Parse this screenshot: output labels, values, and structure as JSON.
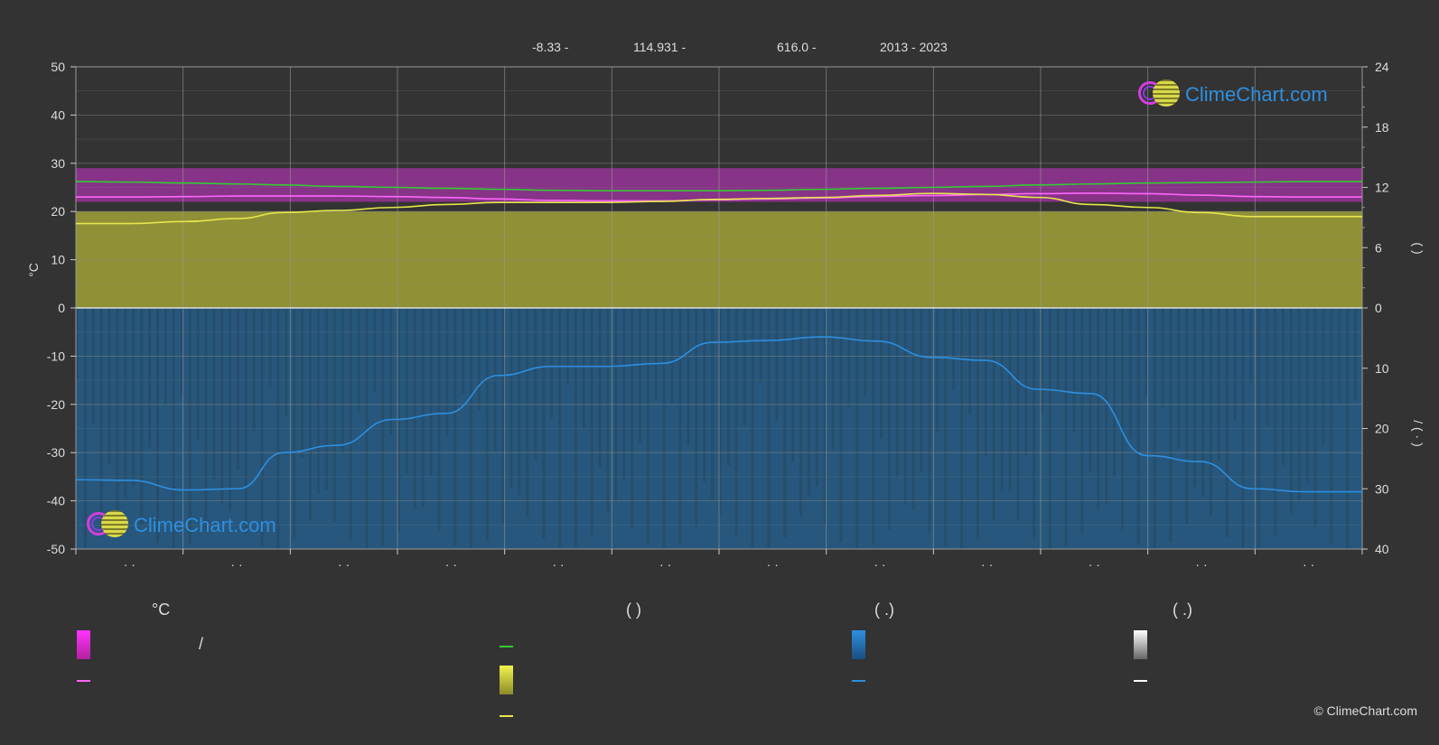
{
  "header": {
    "latitude": "-8.33 -",
    "longitude": "114.931 -",
    "elevation": "616.0 -",
    "years": "2013 - 2023"
  },
  "chart_data": {
    "type": "line",
    "title": "",
    "x_categories": [
      "· ·",
      "· ·",
      "· ·",
      "· ·",
      "· ·",
      "· ·",
      "· ·",
      "· ·",
      "· ·",
      "· ·",
      "· ·",
      "· ·"
    ],
    "left_axis": {
      "label": "°C",
      "min": -50,
      "max": 50,
      "ticks": [
        50,
        40,
        30,
        20,
        10,
        0,
        -10,
        -20,
        -30,
        -40,
        -50
      ]
    },
    "right_axis_top": {
      "label": "(   )",
      "min": 0,
      "max": 24,
      "ticks": [
        24,
        18,
        12,
        6,
        0
      ]
    },
    "right_axis_bottom": {
      "label": "/   (   ·   )",
      "min": 0,
      "max": 40,
      "ticks": [
        10,
        20,
        30,
        40
      ]
    },
    "x": [
      0,
      15,
      31,
      46,
      59,
      74,
      90,
      105,
      120,
      135,
      151,
      166,
      181,
      196,
      212,
      227,
      243,
      258,
      273,
      288,
      304,
      319,
      334,
      349,
      365
    ],
    "series": [
      {
        "name": "",
        "color": "#33cc33",
        "axis": "left",
        "values": [
          26.2,
          26.1,
          25.9,
          25.7,
          25.5,
          25.2,
          25.0,
          24.8,
          24.6,
          24.4,
          24.3,
          24.3,
          24.3,
          24.4,
          24.6,
          24.8,
          25.0,
          25.2,
          25.5,
          25.7,
          25.9,
          26.0,
          26.1,
          26.2,
          26.2
        ]
      },
      {
        "name": "",
        "color": "#ff66ff",
        "axis": "left",
        "values": [
          23.0,
          23.0,
          23.1,
          23.2,
          23.2,
          23.2,
          23.1,
          22.9,
          22.6,
          22.3,
          22.2,
          22.2,
          22.4,
          22.6,
          22.8,
          23.1,
          23.3,
          23.5,
          23.7,
          23.8,
          23.7,
          23.4,
          23.1,
          23.0,
          23.0
        ]
      },
      {
        "name": "",
        "color": "#e6e64d",
        "axis": "right_top",
        "values": [
          8.4,
          8.4,
          8.6,
          8.9,
          9.5,
          9.7,
          10.0,
          10.3,
          10.5,
          10.5,
          10.5,
          10.6,
          10.8,
          10.9,
          11.0,
          11.2,
          11.4,
          11.3,
          11.0,
          10.3,
          10.0,
          9.5,
          9.1,
          9.1,
          9.1
        ]
      },
      {
        "name": "",
        "color": "#2e8fe0",
        "axis": "right_bottom",
        "values": [
          28.5,
          28.6,
          30.2,
          30.0,
          24.0,
          22.8,
          18.5,
          17.5,
          11.2,
          9.7,
          9.7,
          9.2,
          5.7,
          5.4,
          4.8,
          5.5,
          8.2,
          8.7,
          13.5,
          14.2,
          24.5,
          25.5,
          30.0,
          30.5,
          30.5
        ]
      }
    ],
    "bands": [
      {
        "name": "",
        "color": "#cc33cc",
        "axis": "left",
        "low": 22.0,
        "high": 29.0
      },
      {
        "name": "",
        "color": "#c9c93a",
        "axis": "right_top",
        "low": 0,
        "high": 9.6
      },
      {
        "name": "",
        "color": "#1f6fae",
        "axis": "right_bottom",
        "low": 0,
        "high": 40
      }
    ],
    "grid": true,
    "zero_line": true
  },
  "legend": {
    "columns": [
      {
        "heading": "°C",
        "items": [
          {
            "type": "gradient",
            "color_top": "#ff33ff",
            "color_bottom": "#b3219e",
            "text": "/"
          },
          {
            "type": "line",
            "color": "#ff66ff",
            "text": ""
          }
        ]
      },
      {
        "heading": "(            )",
        "items": [
          {
            "type": "line",
            "color": "#33cc33",
            "text": ""
          },
          {
            "type": "gradient",
            "color_top": "#f2f24d",
            "color_bottom": "#8c8c2a",
            "text": ""
          },
          {
            "type": "line",
            "color": "#e6e64d",
            "text": ""
          }
        ]
      },
      {
        "heading": "(    .)",
        "items": [
          {
            "type": "gradient",
            "color_top": "#2e8fe0",
            "color_bottom": "#1a4f80",
            "text": ""
          },
          {
            "type": "line",
            "color": "#2e8fe0",
            "text": ""
          }
        ]
      },
      {
        "heading": "(    .)",
        "items": [
          {
            "type": "gradient",
            "color_top": "#ffffff",
            "color_bottom": "#666666",
            "text": ""
          },
          {
            "type": "line",
            "color": "#ffffff",
            "text": ""
          }
        ]
      }
    ]
  },
  "brand": {
    "logo_text": "ClimeChart.com",
    "copyright": "© ClimeChart.com"
  }
}
